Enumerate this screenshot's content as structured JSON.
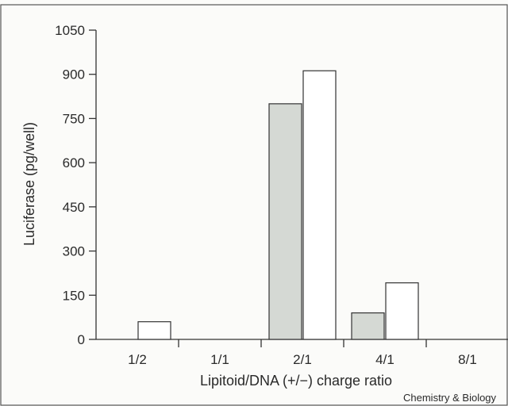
{
  "chart_data": {
    "type": "bar",
    "categories": [
      "1/2",
      "1/1",
      "2/1",
      "4/1",
      "8/1"
    ],
    "series": [
      {
        "values": [
          0,
          0,
          800,
          90,
          0
        ],
        "color": "#d5d9d4"
      },
      {
        "values": [
          60,
          0,
          912,
          192,
          0
        ],
        "color": "#ffffff"
      }
    ],
    "xlabel": "Lipitoid/DNA (+/−) charge ratio",
    "ylabel": "Luciferase (pg/well)",
    "ylim": [
      0,
      1050
    ],
    "yticks": [
      0,
      150,
      300,
      450,
      600,
      750,
      900,
      1050
    ],
    "grid": false
  },
  "credit": "Chemistry & Biology"
}
